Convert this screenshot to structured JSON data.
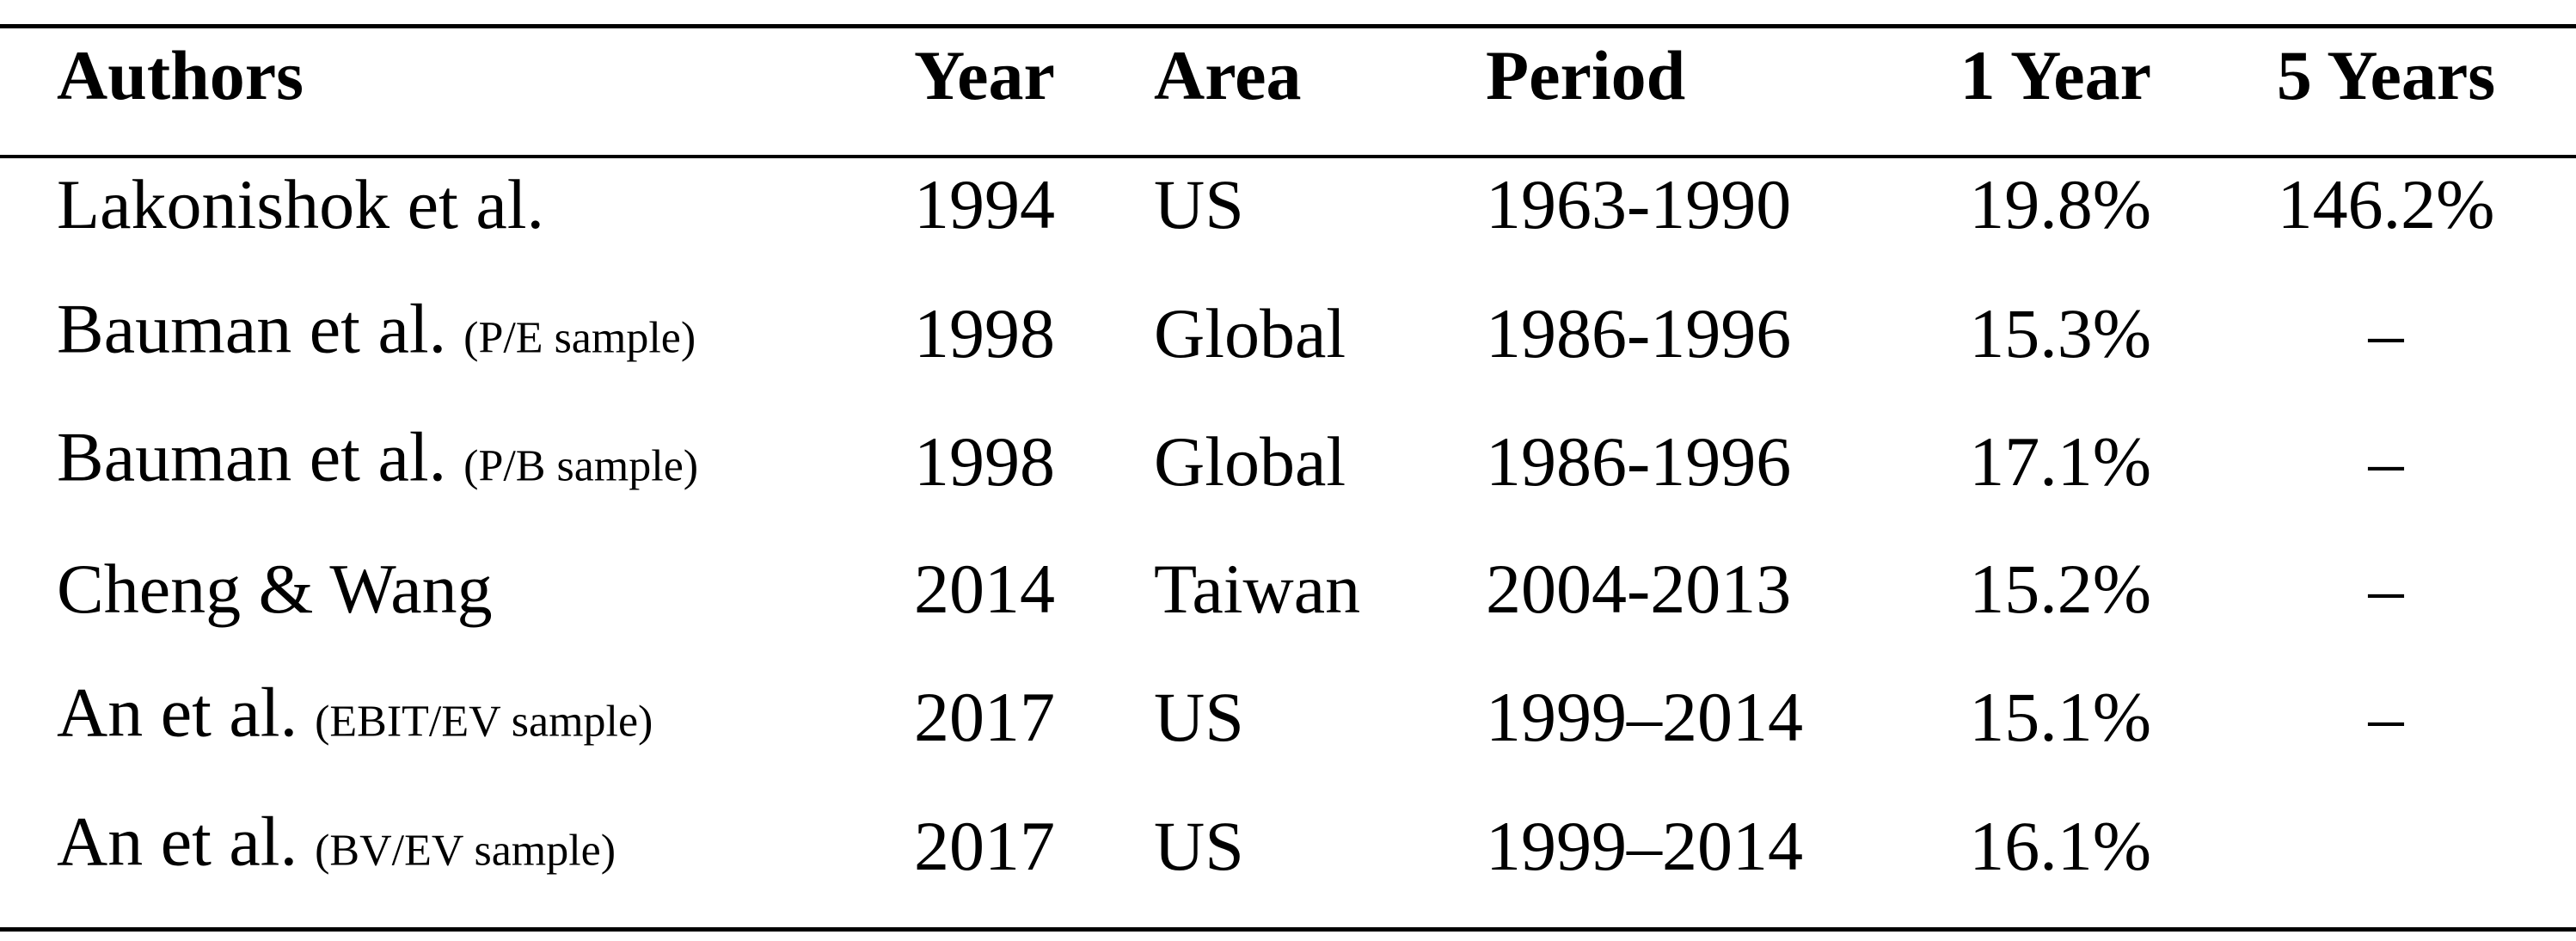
{
  "table": {
    "header": [
      "Authors",
      "Year",
      "Area",
      "Period",
      "1 Year",
      "5 Years"
    ],
    "rows": [
      {
        "authors": "Lakonishok et al.",
        "year": "1994",
        "area": "US",
        "period": "1963-1990",
        "one_year": "19.8%",
        "five_years": "146.2%"
      },
      {
        "authors": "Bauman et al.",
        "note": "(P/E sample)",
        "year": "1998",
        "area": "Global",
        "period": "1986-1996",
        "one_year": "15.3%",
        "five_years": "–"
      },
      {
        "authors": "Bauman et al.",
        "note": "(P/B sample)",
        "year": "1998",
        "area": "Global",
        "period": "1986-1996",
        "one_year": "17.1%",
        "five_years": "–"
      },
      {
        "authors": "Cheng & Wang",
        "year": "2014",
        "area": "Taiwan",
        "period": "2004-2013",
        "one_year": "15.2%",
        "five_years": "–"
      },
      {
        "authors": "An et al.",
        "note": "(EBIT/EV sample)",
        "year": "2017",
        "area": "US",
        "period": "1999–2014",
        "one_year": "15.1%",
        "five_years": "–"
      },
      {
        "authors": "An et al.",
        "note": "(BV/EV sample)",
        "year": "2017",
        "area": "US",
        "period": "1999–2014",
        "one_year": "16.1%"
      }
    ]
  }
}
